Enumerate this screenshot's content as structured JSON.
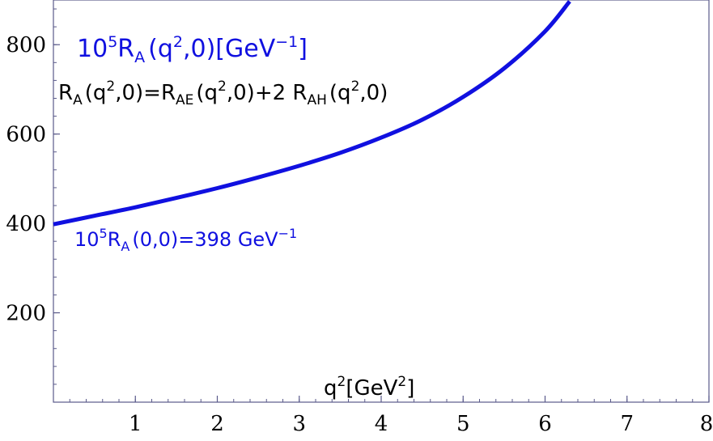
{
  "chart_data": {
    "type": "line",
    "title": "",
    "xlabel": "",
    "ylabel": "",
    "xlim": [
      0,
      8
    ],
    "ylim": [
      0,
      900
    ],
    "x_ticks": [
      1,
      2,
      3,
      4,
      5,
      6,
      7,
      8
    ],
    "x_tick_labels": [
      "1",
      "2",
      "3",
      "4",
      "5",
      "6",
      "7",
      "8"
    ],
    "y_ticks": [
      200,
      400,
      600,
      800
    ],
    "y_tick_labels": [
      "200",
      "400",
      "600",
      "800"
    ],
    "grid": false,
    "line_color": "#1010e0",
    "series": [
      {
        "name": "",
        "x": [
          0,
          0.5,
          1,
          1.5,
          2,
          2.5,
          3,
          3.5,
          4,
          4.5,
          5,
          5.5,
          6,
          6.3
        ],
        "y": [
          398,
          417,
          436,
          457,
          479,
          503,
          529,
          558,
          592,
          632,
          683,
          747,
          830,
          897
        ]
      }
    ],
    "annotations": {
      "series_label": {
        "base": "10",
        "exp": "5",
        "sym": "R",
        "sub": "A",
        "args": "(q",
        "args_exp": "2",
        "args_end": ",0)[GeV",
        "unit_exp": "−1",
        "close": "]"
      },
      "formula": {
        "p1": "R",
        "p1_sub": "A",
        "p2": "(q",
        "p2_exp": "2",
        "p3": ",0)=R",
        "p3_sub": "AE",
        "p4": "(q",
        "p4_exp": "2",
        "p5": ",0)+2 R",
        "p5_sub": "AH",
        "p6": "(q",
        "p6_exp": "2",
        "p7": ",0)"
      },
      "intercept": {
        "base": "10",
        "exp": "5",
        "sym": "R",
        "sub": "A",
        "args": "(0,0)=398 GeV",
        "unit_exp": "−1"
      },
      "x_axis_label": {
        "q": "q",
        "exp": "2",
        "unit": "[GeV",
        "unit_exp": "2",
        "close": "]"
      }
    }
  }
}
